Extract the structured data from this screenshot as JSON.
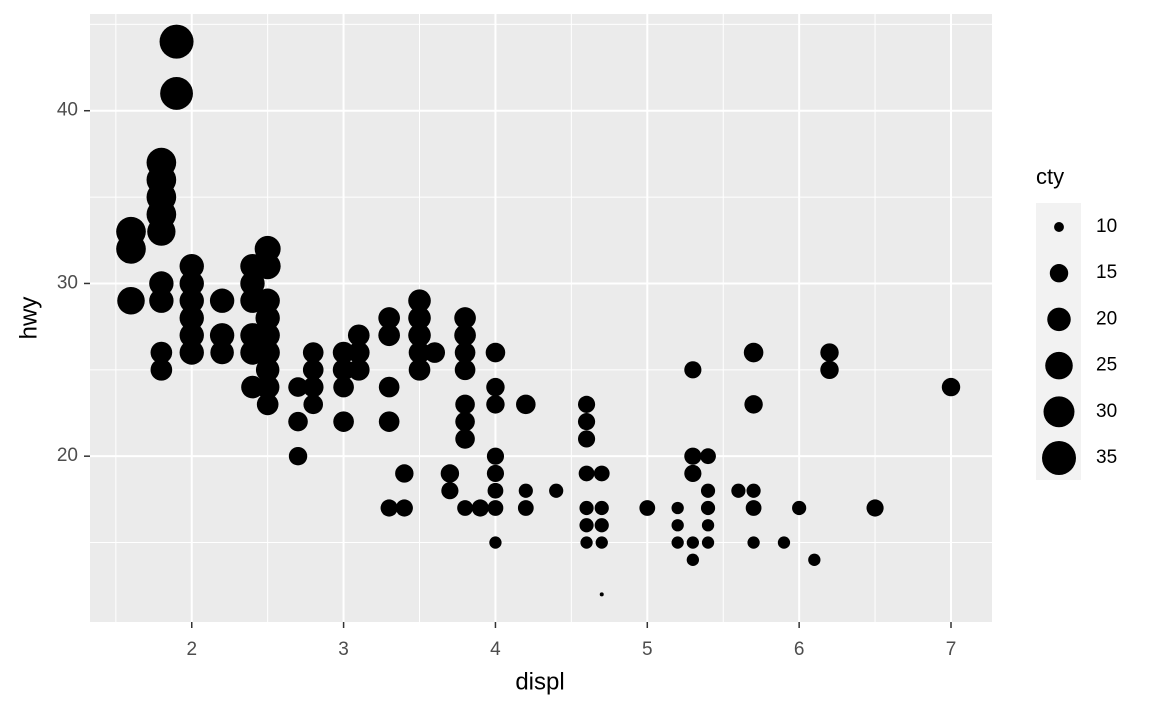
{
  "chart_data": {
    "type": "scatter",
    "x_label": "displ",
    "y_label": "hwy",
    "size_label": "cty",
    "color": "#000000",
    "grid": true,
    "xlim": [
      1.33,
      7.27
    ],
    "ylim": [
      10.4,
      45.6
    ],
    "xticks": [
      2,
      3,
      4,
      5,
      6,
      7
    ],
    "yticks": [
      20,
      30,
      40
    ],
    "x_minor_grid": [
      1.5,
      2.5,
      3.5,
      4.5,
      5.5,
      6.5
    ],
    "y_minor_grid": [
      15,
      25,
      35,
      45
    ],
    "size_lim": [
      9,
      35
    ],
    "size_legend": [
      10,
      15,
      20,
      25,
      30,
      35
    ],
    "series": [
      {
        "name": "cty",
        "x": [
          1.6,
          1.6,
          1.6,
          1.8,
          1.8,
          1.8,
          1.8,
          1.8,
          1.8,
          1.8,
          1.8,
          1.8,
          1.9,
          1.9,
          2.0,
          2.0,
          2.0,
          2.0,
          2.0,
          2.0,
          2.2,
          2.2,
          2.2,
          2.4,
          2.4,
          2.4,
          2.4,
          2.4,
          2.4,
          2.5,
          2.5,
          2.5,
          2.5,
          2.5,
          2.5,
          2.5,
          2.5,
          2.5,
          2.7,
          2.7,
          2.7,
          2.8,
          2.8,
          2.8,
          2.8,
          3.0,
          3.0,
          3.0,
          3.0,
          3.1,
          3.1,
          3.1,
          3.3,
          3.3,
          3.3,
          3.3,
          3.3,
          3.4,
          3.4,
          3.5,
          3.5,
          3.5,
          3.5,
          3.5,
          3.6,
          3.7,
          3.7,
          3.8,
          3.8,
          3.8,
          3.8,
          3.8,
          3.8,
          3.8,
          3.8,
          3.9,
          4.0,
          4.0,
          4.0,
          4.0,
          4.0,
          4.0,
          4.0,
          4.0,
          4.2,
          4.2,
          4.2,
          4.4,
          4.6,
          4.6,
          4.6,
          4.6,
          4.6,
          4.6,
          4.6,
          4.7,
          4.7,
          4.7,
          4.7,
          4.7,
          5.0,
          5.2,
          5.2,
          5.2,
          5.3,
          5.3,
          5.3,
          5.3,
          5.3,
          5.4,
          5.4,
          5.4,
          5.4,
          5.4,
          5.6,
          5.7,
          5.7,
          5.7,
          5.7,
          5.7,
          5.9,
          6.0,
          6.1,
          6.2,
          6.2,
          6.5,
          7.0
        ],
        "values": [
          33,
          32,
          29,
          37,
          36,
          35,
          34,
          33,
          30,
          29,
          26,
          25,
          44,
          41,
          31,
          30,
          29,
          28,
          27,
          26,
          29,
          27,
          26,
          31,
          30,
          29,
          27,
          26,
          24,
          32,
          31,
          29,
          28,
          27,
          26,
          25,
          24,
          23,
          24,
          22,
          20,
          26,
          25,
          24,
          23,
          26,
          25,
          24,
          22,
          27,
          26,
          25,
          28,
          27,
          24,
          22,
          17,
          19,
          17,
          29,
          28,
          27,
          26,
          25,
          26,
          19,
          18,
          28,
          27,
          26,
          25,
          23,
          22,
          21,
          17,
          17,
          26,
          24,
          23,
          20,
          19,
          18,
          17,
          15,
          23,
          18,
          17,
          18,
          23,
          22,
          21,
          19,
          17,
          16,
          15,
          19,
          17,
          16,
          15,
          12,
          17,
          17,
          16,
          15,
          25,
          20,
          19,
          15,
          14,
          20,
          18,
          17,
          16,
          15,
          18,
          26,
          23,
          18,
          17,
          15,
          15,
          17,
          14,
          26,
          25,
          17,
          24
        ],
        "sizes": [
          28,
          28,
          25,
          28,
          28,
          28,
          28,
          26,
          21,
          21,
          18,
          18,
          35,
          33,
          21,
          21,
          21,
          21,
          21,
          21,
          21,
          21,
          20,
          21,
          21,
          21,
          21,
          21,
          19,
          23,
          23,
          21,
          21,
          21,
          21,
          20,
          20,
          18,
          16,
          16,
          15,
          17,
          17,
          17,
          16,
          18,
          18,
          17,
          17,
          18,
          18,
          18,
          18,
          18,
          17,
          17,
          14,
          15,
          14,
          19,
          19,
          19,
          18,
          18,
          17,
          15,
          14,
          18,
          18,
          17,
          17,
          16,
          16,
          16,
          13,
          14,
          16,
          15,
          15,
          14,
          14,
          13,
          13,
          11,
          16,
          12,
          13,
          12,
          14,
          14,
          14,
          13,
          12,
          12,
          11,
          13,
          12,
          12,
          11,
          9,
          13,
          11,
          11,
          11,
          14,
          14,
          14,
          11,
          11,
          13,
          12,
          12,
          11,
          11,
          12,
          16,
          15,
          12,
          13,
          11,
          11,
          12,
          11,
          15,
          15,
          14,
          15
        ]
      }
    ]
  }
}
